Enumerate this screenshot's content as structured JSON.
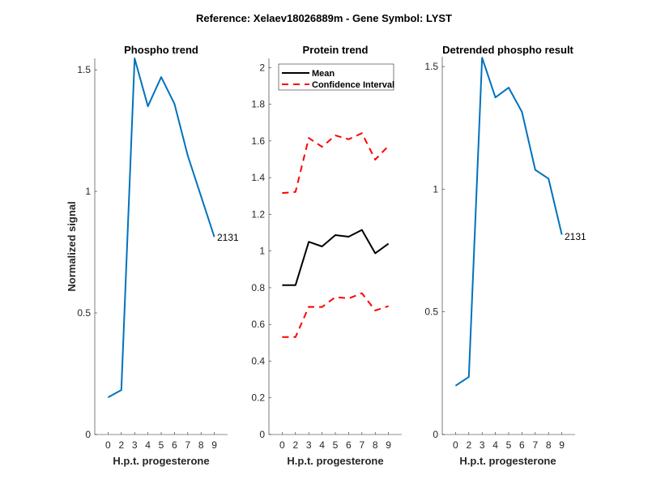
{
  "suptitle": "Reference:  Xelaev18026889m - Gene Symbol:  LYST",
  "colors": {
    "phospho": "#0072BD",
    "mean": "#000000",
    "ci": "#FF0000",
    "axis": "#262626"
  },
  "chart_data": [
    {
      "type": "line",
      "title": "Phospho trend",
      "xlabel": "H.p.t. progesterone",
      "ylabel": "Normalized signal",
      "categories": [
        "0",
        "2",
        "3",
        "4",
        "5",
        "6",
        "7",
        "8",
        "9"
      ],
      "xlim": [
        0,
        10
      ],
      "ylim": [
        0,
        1.547
      ],
      "yticks": [
        0,
        0.5,
        1,
        1.5
      ],
      "ytick_labels": [
        "0",
        "0.5",
        "1",
        "1.5"
      ],
      "series": [
        {
          "name": "2131",
          "values": [
            0.153,
            0.183,
            1.547,
            1.35,
            1.47,
            1.36,
            1.147,
            0.98,
            0.813
          ]
        }
      ],
      "annotations": [
        "2131"
      ],
      "legend": null,
      "grid": false
    },
    {
      "type": "line",
      "title": "Protein trend",
      "xlabel": "H.p.t. progesterone",
      "ylabel": "",
      "categories": [
        "0",
        "2",
        "3",
        "4",
        "5",
        "6",
        "7",
        "8",
        "9"
      ],
      "xlim": [
        0,
        10
      ],
      "ylim": [
        0,
        2.05
      ],
      "yticks": [
        0,
        0.2,
        0.4,
        0.6,
        0.8,
        1,
        1.2,
        1.4,
        1.6,
        1.8,
        2
      ],
      "ytick_labels": [
        "0",
        "0.2",
        "0.4",
        "0.6",
        "0.8",
        "1",
        "1.2",
        "1.4",
        "1.6",
        "1.8",
        "2"
      ],
      "series": [
        {
          "name": "Mean",
          "values": [
            0.814,
            0.814,
            1.05,
            1.025,
            1.087,
            1.078,
            1.115,
            0.988,
            1.04
          ]
        },
        {
          "name": "Confidence Interval",
          "values": [
            1.316,
            1.322,
            1.616,
            1.568,
            1.63,
            1.609,
            1.642,
            1.498,
            1.573
          ]
        },
        {
          "name": "Confidence Interval (lower)",
          "values": [
            0.531,
            0.531,
            0.696,
            0.695,
            0.749,
            0.742,
            0.77,
            0.676,
            0.7
          ]
        }
      ],
      "legend": {
        "position": "top-left",
        "entries": [
          "Mean",
          "Confidence Interval"
        ]
      },
      "grid": false
    },
    {
      "type": "line",
      "title": "Detrended phospho result",
      "xlabel": "H.p.t. progesterone",
      "ylabel": "",
      "categories": [
        "0",
        "2",
        "3",
        "4",
        "5",
        "6",
        "7",
        "8",
        "9"
      ],
      "xlim": [
        0,
        10
      ],
      "ylim": [
        0,
        1.54
      ],
      "yticks": [
        0,
        0.5,
        1,
        1.5
      ],
      "ytick_labels": [
        "0",
        "0.5",
        "1",
        "1.5"
      ],
      "series": [
        {
          "name": "2131",
          "values": [
            0.199,
            0.235,
            1.536,
            1.374,
            1.414,
            1.315,
            1.079,
            1.043,
            0.815
          ]
        }
      ],
      "annotations": [
        "2131"
      ],
      "legend": null,
      "grid": false
    }
  ]
}
